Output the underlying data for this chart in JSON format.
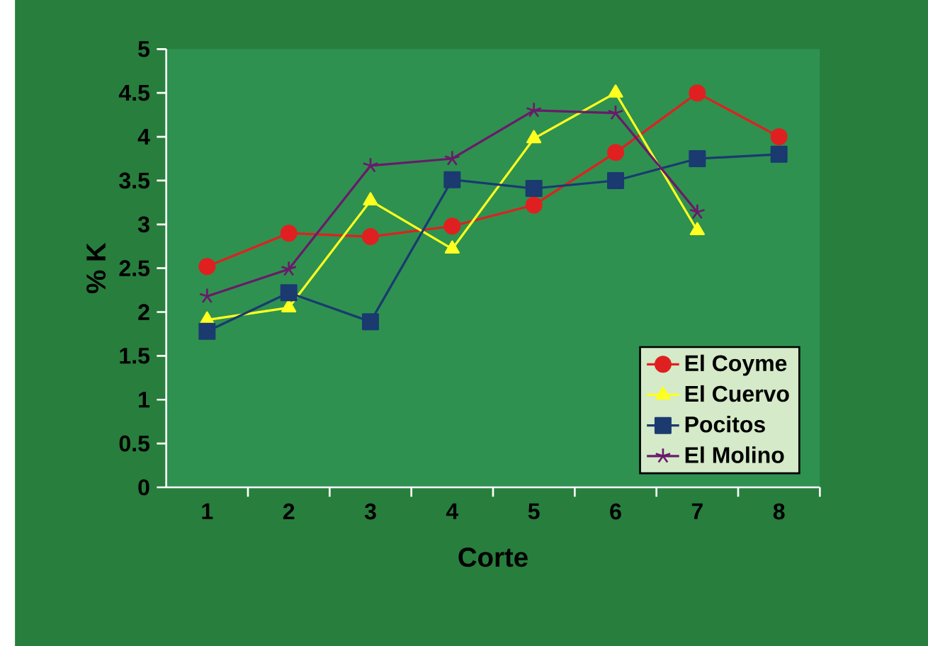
{
  "chart_data": {
    "type": "line",
    "xlabel": "Corte",
    "ylabel": "% K",
    "categories": [
      "1",
      "2",
      "3",
      "4",
      "5",
      "6",
      "7",
      "8"
    ],
    "series": [
      {
        "name": "El Coyme",
        "color": "#e02020",
        "marker": "circle",
        "values": [
          2.52,
          2.9,
          2.86,
          2.98,
          3.22,
          3.82,
          4.5,
          4.0
        ]
      },
      {
        "name": "El Cuervo",
        "color": "#ffff20",
        "marker": "triangle",
        "values": [
          1.91,
          2.05,
          3.27,
          2.72,
          3.98,
          4.5,
          2.93,
          null
        ]
      },
      {
        "name": "Pocitos",
        "color": "#1a3a70",
        "marker": "square",
        "values": [
          1.78,
          2.22,
          1.89,
          3.51,
          3.41,
          3.5,
          3.75,
          3.8
        ]
      },
      {
        "name": "El Molino",
        "color": "#6a1a6a",
        "marker": "cross",
        "values": [
          2.18,
          2.49,
          3.67,
          3.75,
          4.3,
          4.27,
          3.14,
          null
        ]
      }
    ],
    "ylim": [
      0,
      5
    ],
    "yticks": [
      0,
      0.5,
      1,
      1.5,
      2,
      2.5,
      3,
      3.5,
      4,
      4.5,
      5
    ],
    "grid": false,
    "legend": "bottom right"
  }
}
